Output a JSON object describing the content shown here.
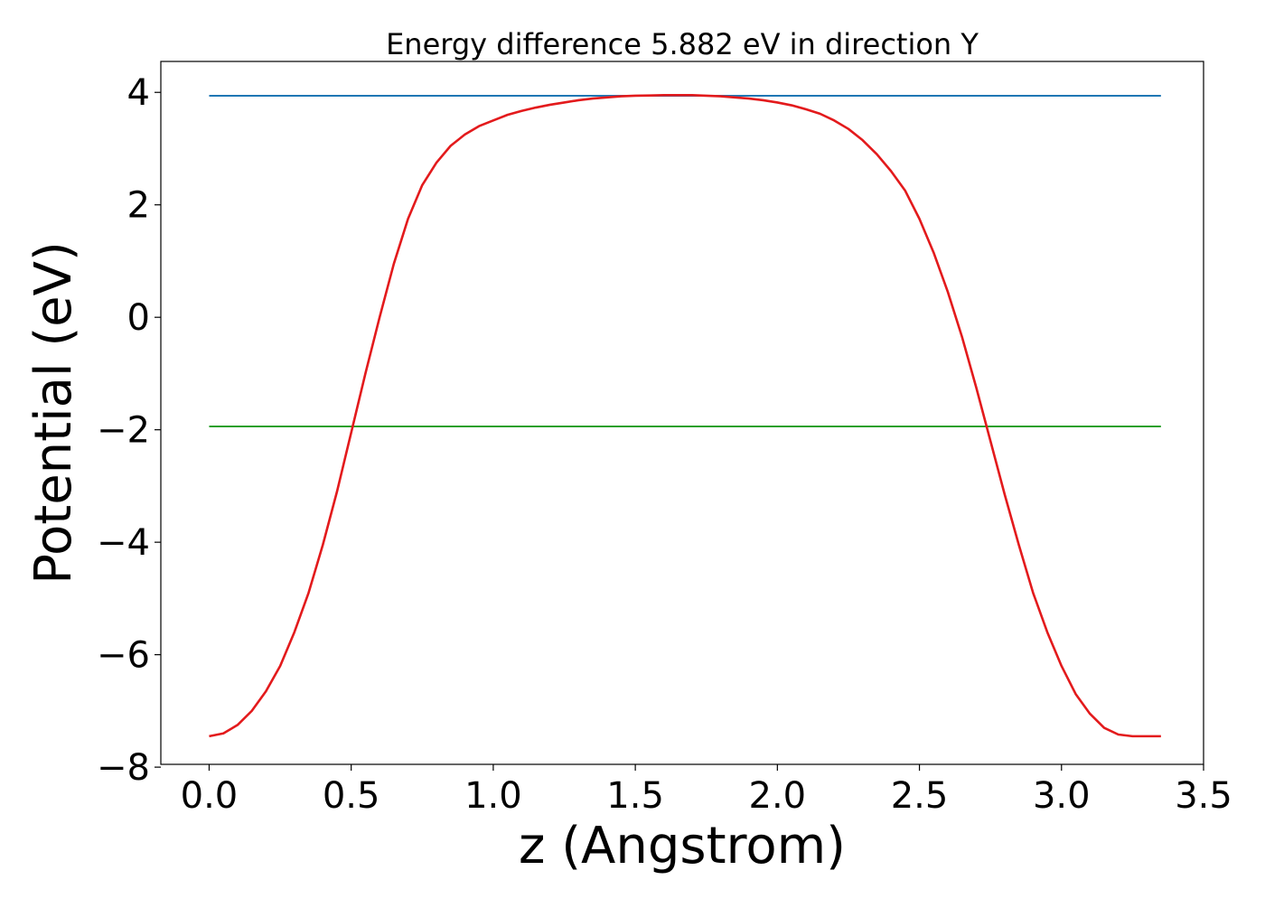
{
  "chart_data": {
    "type": "line",
    "title": "Energy difference 5.882 eV in direction Y",
    "xlabel": "z (Angstrom)",
    "ylabel": "Potential (eV)",
    "xlim": [
      -0.17,
      3.5
    ],
    "ylim": [
      -7.95,
      4.55
    ],
    "x_ticks": [
      0.0,
      0.5,
      1.0,
      1.5,
      2.0,
      2.5,
      3.0,
      3.5
    ],
    "x_tick_labels": [
      "0.0",
      "0.5",
      "1.0",
      "1.5",
      "2.0",
      "2.5",
      "3.0",
      "3.5"
    ],
    "y_ticks": [
      -8,
      -6,
      -4,
      -2,
      0,
      2,
      4
    ],
    "y_tick_labels": [
      "−8",
      "−6",
      "−4",
      "−2",
      "0",
      "2",
      "4"
    ],
    "grid": false,
    "series": [
      {
        "color": "#1f77b4",
        "x": [
          0.0,
          3.35
        ],
        "y": [
          3.94,
          3.94
        ]
      },
      {
        "color": "#2ca02c",
        "x": [
          0.0,
          3.35
        ],
        "y": [
          -1.94,
          -1.94
        ]
      },
      {
        "color": "#e31a1c",
        "x": [
          0.0,
          0.05,
          0.1,
          0.15,
          0.2,
          0.25,
          0.3,
          0.35,
          0.4,
          0.45,
          0.5,
          0.55,
          0.6,
          0.65,
          0.7,
          0.75,
          0.8,
          0.85,
          0.9,
          0.95,
          1.0,
          1.05,
          1.1,
          1.15,
          1.2,
          1.25,
          1.3,
          1.35,
          1.4,
          1.45,
          1.5,
          1.55,
          1.6,
          1.65,
          1.7,
          1.75,
          1.8,
          1.85,
          1.9,
          1.95,
          2.0,
          2.05,
          2.1,
          2.15,
          2.2,
          2.25,
          2.3,
          2.35,
          2.4,
          2.45,
          2.5,
          2.55,
          2.6,
          2.65,
          2.7,
          2.75,
          2.8,
          2.85,
          2.9,
          2.95,
          3.0,
          3.05,
          3.1,
          3.15,
          3.2,
          3.25,
          3.3,
          3.35
        ],
        "y": [
          -7.45,
          -7.4,
          -7.25,
          -7.0,
          -6.65,
          -6.2,
          -5.6,
          -4.9,
          -4.05,
          -3.1,
          -2.05,
          -1.0,
          0.0,
          0.95,
          1.75,
          2.35,
          2.75,
          3.05,
          3.25,
          3.4,
          3.5,
          3.6,
          3.67,
          3.73,
          3.78,
          3.82,
          3.86,
          3.89,
          3.91,
          3.93,
          3.94,
          3.945,
          3.95,
          3.95,
          3.95,
          3.94,
          3.93,
          3.91,
          3.89,
          3.86,
          3.82,
          3.77,
          3.7,
          3.62,
          3.5,
          3.35,
          3.15,
          2.9,
          2.6,
          2.25,
          1.75,
          1.15,
          0.45,
          -0.35,
          -1.25,
          -2.2,
          -3.15,
          -4.05,
          -4.9,
          -5.6,
          -6.2,
          -6.7,
          -7.05,
          -7.3,
          -7.42,
          -7.45,
          -7.45,
          -7.45
        ]
      }
    ]
  }
}
